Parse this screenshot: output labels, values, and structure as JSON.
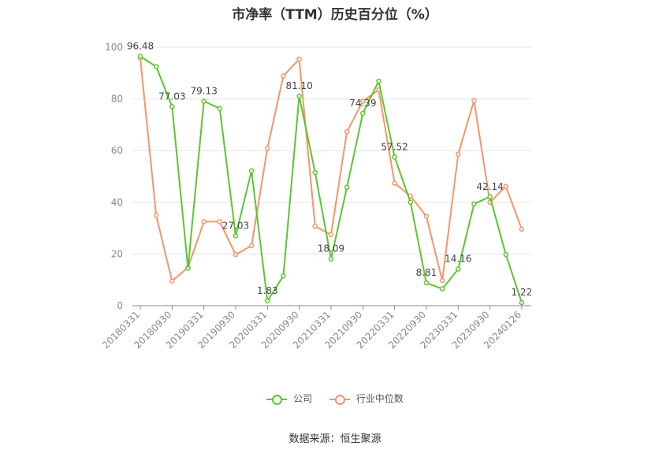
{
  "chart_data": {
    "type": "line",
    "title": "市净率（TTM）历史百分位（%）",
    "xlabel": "",
    "ylabel": "",
    "ylim": [
      0,
      100
    ],
    "yticks": [
      "0",
      "20",
      "40",
      "60",
      "80",
      "100"
    ],
    "x_tick_labels": [
      "20180331",
      "20180930",
      "20190331",
      "20190930",
      "20200331",
      "20200930",
      "20210331",
      "20210930",
      "20220331",
      "20220930",
      "20230331",
      "20230930",
      "20240126"
    ],
    "grid": true,
    "legend_position": "bottom",
    "series": [
      {
        "name": "公司",
        "color": "#5bc62f",
        "values": [
          96.48,
          92.5,
          77.03,
          14.5,
          79.13,
          76.3,
          27.03,
          52.2,
          1.83,
          11.5,
          81.1,
          51.5,
          18.09,
          45.8,
          74.39,
          86.9,
          57.52,
          40.0,
          8.81,
          6.5,
          14.16,
          39.4,
          42.14,
          19.8,
          1.22
        ],
        "labels": [
          "96.48",
          "",
          "77.03",
          "",
          "79.13",
          "",
          "27.03",
          "",
          "1.83",
          "",
          "81.10",
          "",
          "18.09",
          "",
          "74.39",
          "",
          "57.52",
          "",
          "8.81",
          "",
          "14.16",
          "",
          "42.14",
          "",
          "1.22"
        ]
      },
      {
        "name": "行业中位数",
        "color": "#f4956a",
        "values": [
          95.8,
          34.9,
          9.5,
          14.8,
          32.5,
          32.5,
          19.8,
          23.2,
          60.9,
          88.9,
          95.4,
          30.7,
          27.5,
          67.3,
          79.1,
          83.5,
          47.4,
          42.4,
          34.6,
          9.7,
          58.6,
          79.4,
          40.0,
          46.2,
          29.6
        ]
      }
    ]
  },
  "legend": {
    "items": [
      {
        "label": "公司",
        "color": "#5bc62f"
      },
      {
        "label": "行业中位数",
        "color": "#f4956a"
      }
    ]
  },
  "footer": {
    "source": "数据来源：恒生聚源"
  }
}
